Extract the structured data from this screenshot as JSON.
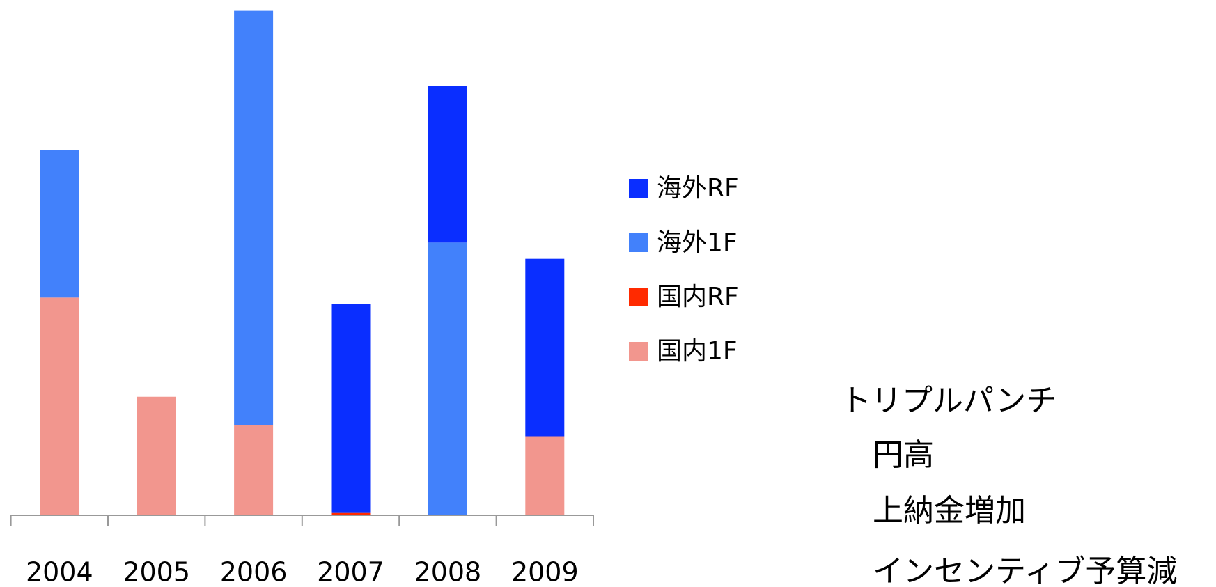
{
  "chart_data": {
    "type": "bar",
    "stacked": true,
    "categories": [
      "2004",
      "2005",
      "2006",
      "2007",
      "2008",
      "2009"
    ],
    "series": [
      {
        "name": "海外RF",
        "color": "#0a2eff",
        "values": [
          0,
          0,
          0,
          270,
          202,
          229
        ]
      },
      {
        "name": "海外1F",
        "color": "#4281fb",
        "values": [
          190,
          0,
          535,
          0,
          352,
          0
        ]
      },
      {
        "name": "国内RF",
        "color": "#ff2a00",
        "values": [
          0,
          0,
          0,
          3,
          0,
          0
        ]
      },
      {
        "name": "国内1F",
        "color": "#f2968e",
        "values": [
          281,
          153,
          116,
          0,
          0,
          102
        ]
      }
    ],
    "ylim": [
      0,
      651
    ],
    "annotations": [
      "トリプルパンチ",
      "円高",
      "上納金増加",
      "インセンティブ予算減"
    ]
  }
}
